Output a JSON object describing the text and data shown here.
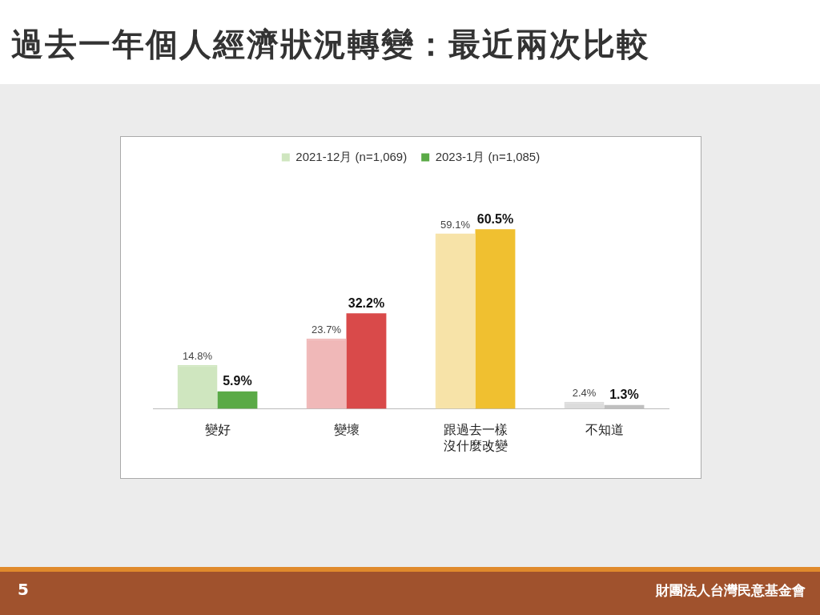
{
  "chart_data": {
    "type": "bar",
    "title": "過去一年個人經濟狀況轉變：最近兩次比較",
    "categories": [
      "變好",
      "變壞",
      "跟過去一樣沒什麼改變",
      "不知道"
    ],
    "series": [
      {
        "name": "2021-12月 (n=1,069)",
        "color": "#cfe6bf",
        "colors": [
          "#cfe6bf",
          "#f0b8b8",
          "#f7e3a8",
          "#dcdcdc"
        ],
        "values": [
          14.8,
          23.7,
          59.1,
          2.4
        ],
        "value_labels": [
          "14.8%",
          "23.7%",
          "59.1%",
          "2.4%"
        ]
      },
      {
        "name": "2023-1月 (n=1,085)",
        "color": "#5aaa46",
        "colors": [
          "#5aaa46",
          "#d94a4a",
          "#f0c030",
          "#bfbfbf"
        ],
        "values": [
          5.9,
          32.2,
          60.5,
          1.3
        ],
        "value_labels": [
          "5.9%",
          "32.2%",
          "60.5%",
          "1.3%"
        ]
      }
    ],
    "tick_labels": "x",
    "legend": "top",
    "annotations": [
      "5",
      "財團法人台灣民意基金會"
    ]
  }
}
